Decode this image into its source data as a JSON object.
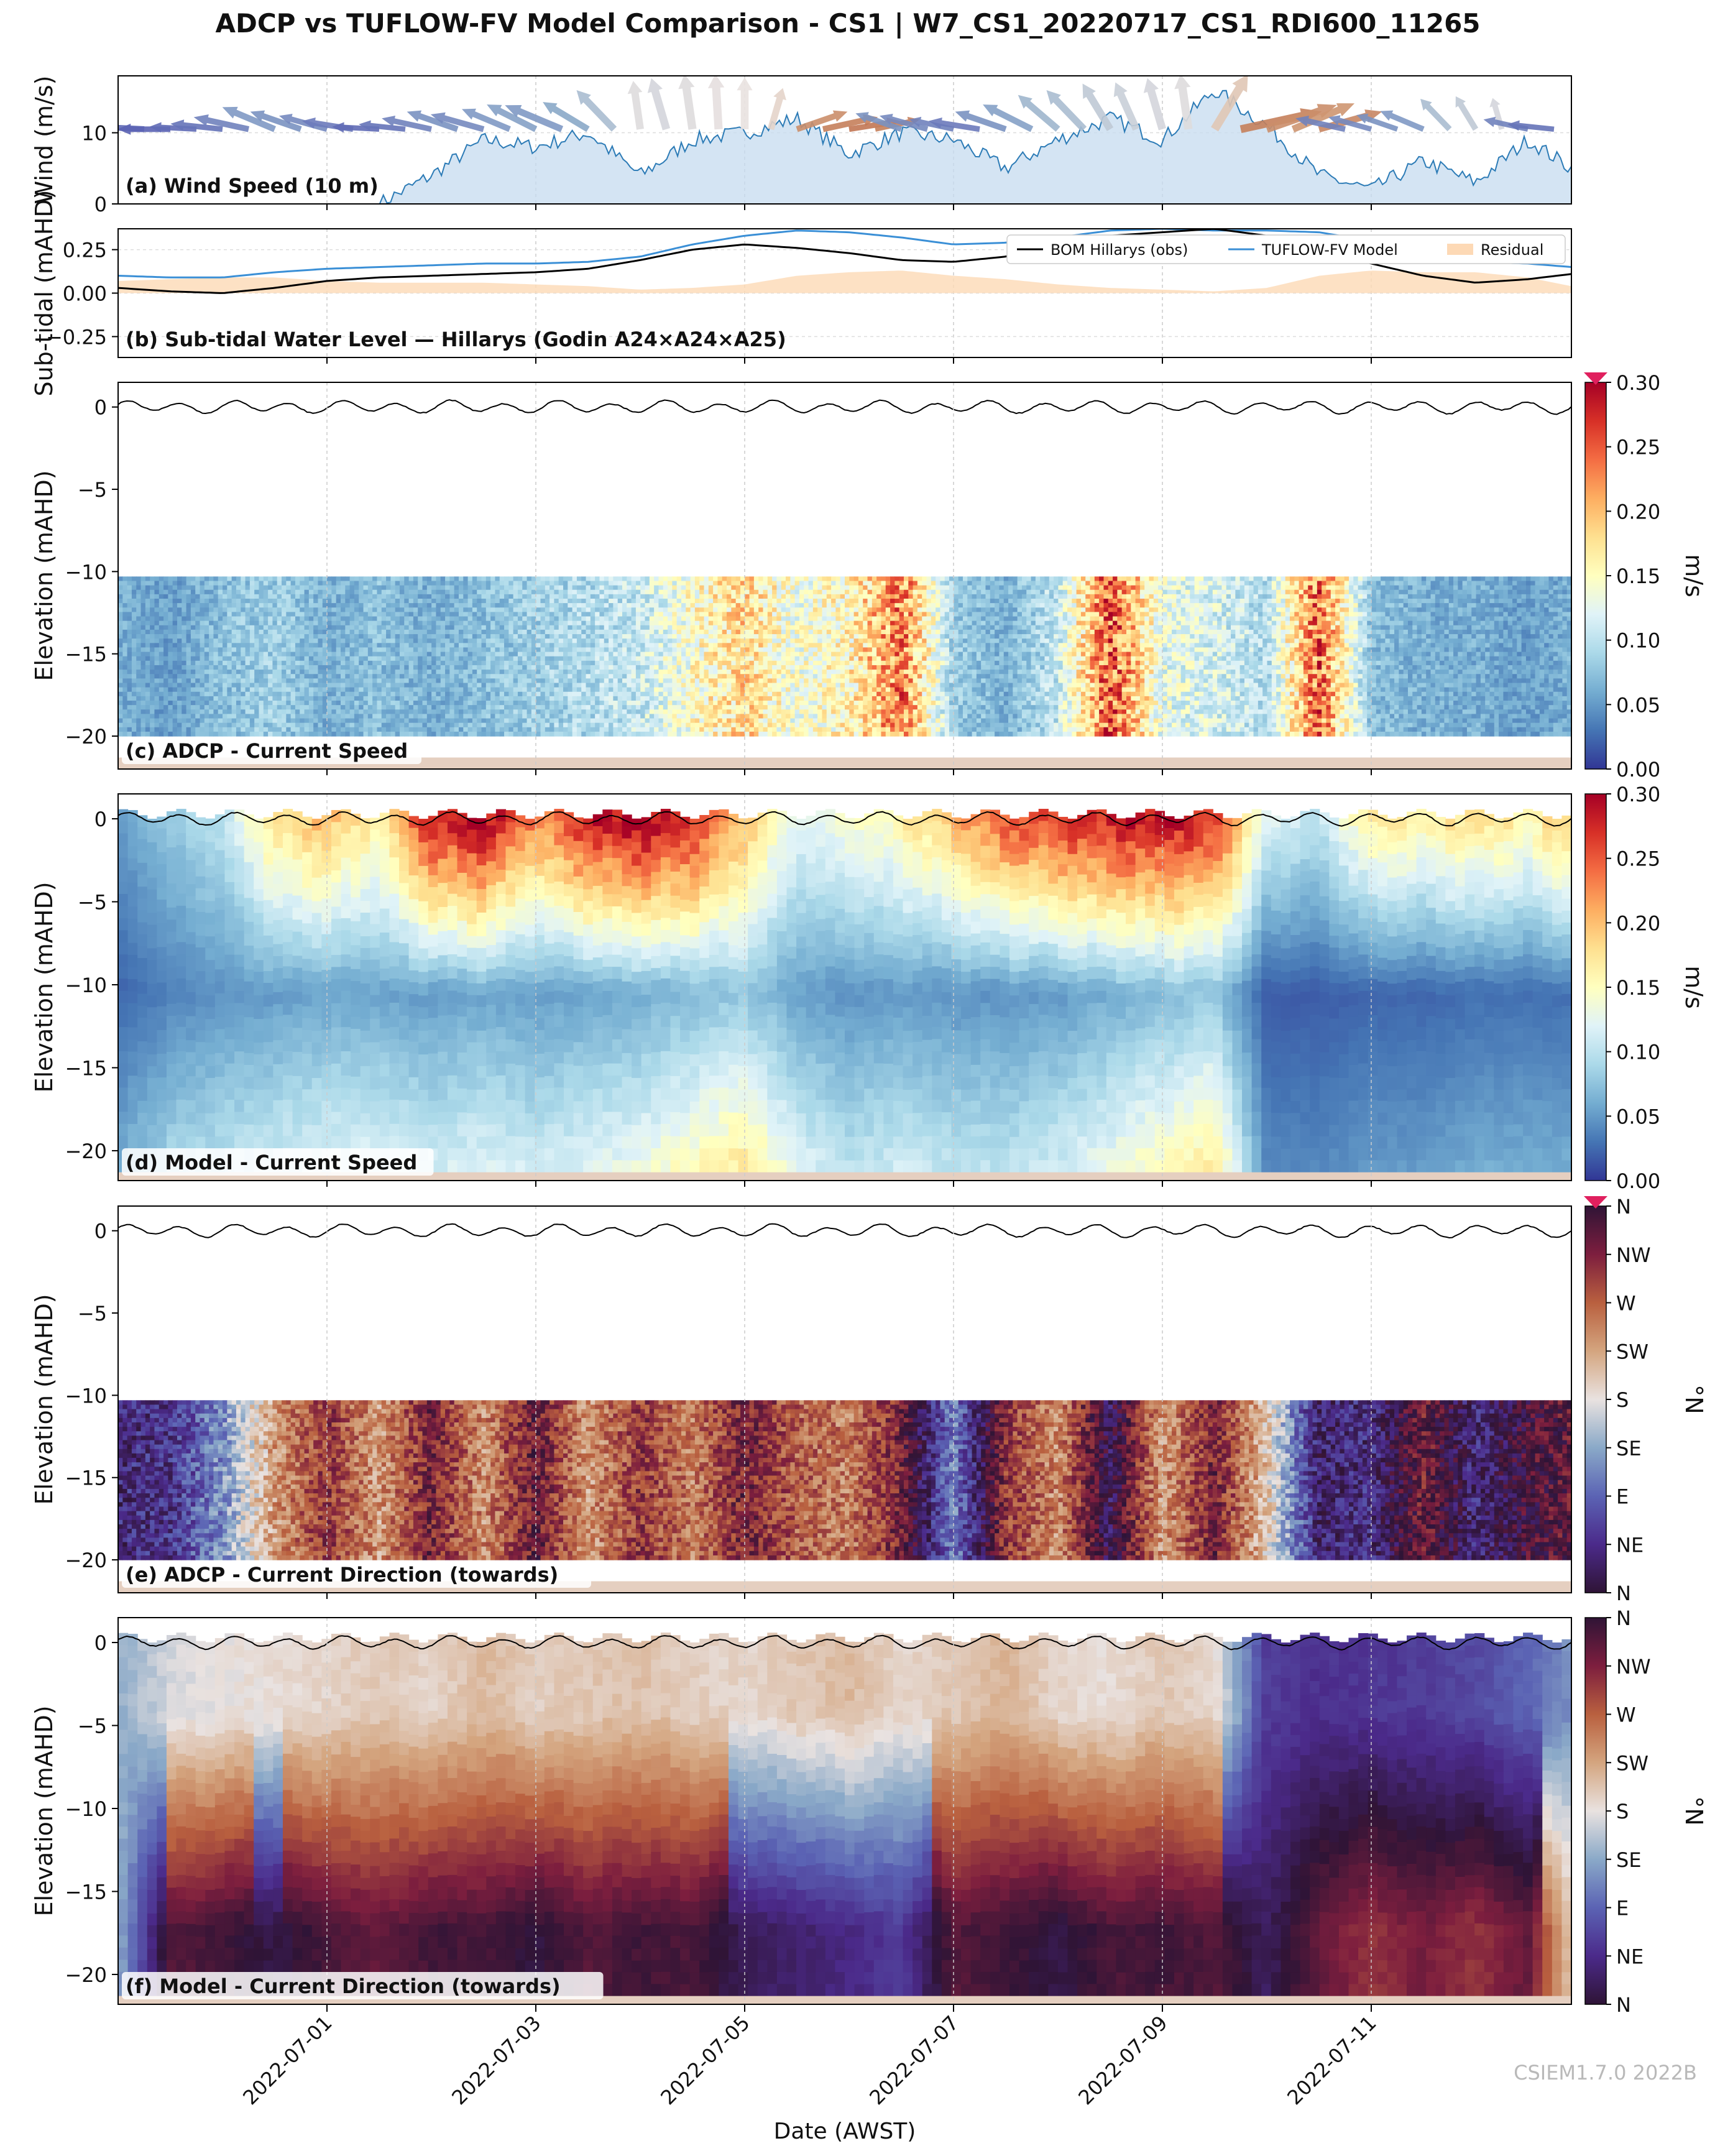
{
  "title": "ADCP vs TUFLOW-FV Model Comparison - CS1 | W7_CS1_20220717_CS1_RDI600_11265",
  "watermark": "CSIEM1.7.0 2022B",
  "x_axis": {
    "label": "Date (AWST)",
    "range": [
      "2022-06-29",
      "2022-07-12T22:00"
    ],
    "ticks": [
      "2022-07-01",
      "2022-07-03",
      "2022-07-05",
      "2022-07-07",
      "2022-07-09",
      "2022-07-11"
    ]
  },
  "colors": {
    "speed_cmap": [
      "#313695",
      "#4575b4",
      "#74add1",
      "#abd9e9",
      "#e0f3f8",
      "#ffffbf",
      "#fee090",
      "#fdae61",
      "#f46d43",
      "#d73027",
      "#a50026"
    ],
    "direction_cmap": [
      "#2f1436",
      "#4b2a8a",
      "#5b63b4",
      "#8aa9c8",
      "#e9e2e0",
      "#d4a57f",
      "#b9603f",
      "#7d1e3e",
      "#2f1436"
    ],
    "wind_fill": "#c6dbef",
    "wind_line": "#2c7bb6",
    "obs_line": "#000000",
    "model_line": "#3a8fd6",
    "residual_fill": "#fdd9b5",
    "seabed": "#e5cfc0",
    "surface_line": "#000000",
    "extend_marker": "#e0205e"
  },
  "chart_data": [
    {
      "id": "a",
      "type": "area",
      "panel_label": "(a) Wind Speed (10 m)",
      "ylabel": "Wind (m/s)",
      "ylim": [
        0,
        18
      ],
      "yticks": [
        0,
        10
      ],
      "grid": true,
      "series": [
        {
          "x": [
            "2022-06-29T00:00",
            "2022-06-29T12:00",
            "2022-06-30T00:00",
            "2022-06-30T12:00",
            "2022-07-01T00:00",
            "2022-07-01T12:00",
            "2022-07-02T00:00",
            "2022-07-02T12:00",
            "2022-07-03T00:00",
            "2022-07-03T12:00",
            "2022-07-04T00:00",
            "2022-07-04T12:00",
            "2022-07-05T00:00",
            "2022-07-05T12:00",
            "2022-07-06T00:00",
            "2022-07-06T12:00",
            "2022-07-07T00:00",
            "2022-07-07T12:00",
            "2022-07-08T00:00",
            "2022-07-08T12:00",
            "2022-07-09T00:00",
            "2022-07-09T12:00",
            "2022-07-10T00:00",
            "2022-07-10T12:00",
            "2022-07-11T00:00",
            "2022-07-11T12:00",
            "2022-07-12T00:00",
            "2022-07-12T12:00",
            "2022-07-12T22:00"
          ],
          "values": [
            0,
            0,
            0,
            0,
            0,
            0,
            4,
            9,
            8,
            10,
            4,
            9,
            10,
            12,
            7,
            10,
            9,
            5,
            9,
            12,
            9,
            16,
            11,
            4,
            2,
            6,
            3,
            9,
            5
          ]
        }
      ],
      "arrows": {
        "x": [
          "2022-06-29T00:00",
          "2022-06-29T06:00",
          "2022-06-29T12:00",
          "2022-06-29T18:00",
          "2022-06-30T00:00",
          "2022-06-30T06:00",
          "2022-06-30T12:00",
          "2022-06-30T18:00",
          "2022-07-01T00:00",
          "2022-07-01T06:00",
          "2022-07-01T12:00",
          "2022-07-01T18:00",
          "2022-07-02T00:00",
          "2022-07-02T06:00",
          "2022-07-02T12:00",
          "2022-07-02T18:00",
          "2022-07-03T00:00",
          "2022-07-03T06:00",
          "2022-07-03T12:00",
          "2022-07-03T18:00",
          "2022-07-04T00:00",
          "2022-07-04T06:00",
          "2022-07-04T12:00",
          "2022-07-04T18:00",
          "2022-07-05T00:00",
          "2022-07-05T06:00",
          "2022-07-05T12:00",
          "2022-07-05T18:00",
          "2022-07-06T00:00",
          "2022-07-06T06:00",
          "2022-07-06T12:00",
          "2022-07-06T18:00",
          "2022-07-07T00:00",
          "2022-07-07T06:00",
          "2022-07-07T12:00",
          "2022-07-07T18:00",
          "2022-07-08T00:00",
          "2022-07-08T06:00",
          "2022-07-08T12:00",
          "2022-07-08T18:00",
          "2022-07-09T00:00",
          "2022-07-09T06:00",
          "2022-07-09T12:00",
          "2022-07-09T18:00",
          "2022-07-10T00:00",
          "2022-07-10T06:00",
          "2022-07-10T12:00",
          "2022-07-10T18:00",
          "2022-07-11T00:00",
          "2022-07-11T06:00",
          "2022-07-11T12:00",
          "2022-07-11T18:00",
          "2022-07-12T00:00",
          "2022-07-12T06:00",
          "2022-07-12T12:00",
          "2022-07-12T18:00"
        ],
        "direction_deg": [
          100,
          95,
          90,
          95,
          100,
          110,
          125,
          120,
          115,
          105,
          95,
          100,
          110,
          120,
          115,
          125,
          130,
          125,
          135,
          150,
          175,
          170,
          175,
          178,
          180,
          190,
          240,
          250,
          255,
          250,
          120,
          115,
          110,
          105,
          120,
          130,
          145,
          150,
          160,
          165,
          170,
          175,
          200,
          250,
          240,
          235,
          245,
          110,
          115,
          120,
          125,
          150,
          160,
          170,
          110,
          100
        ],
        "speed": [
          5,
          6,
          5,
          4,
          5,
          6,
          7,
          6,
          5,
          5,
          4,
          4,
          5,
          6,
          6,
          6,
          7,
          8,
          7,
          9,
          10,
          11,
          12,
          12,
          11,
          8,
          6,
          6,
          5,
          4,
          5,
          5,
          4,
          5,
          6,
          7,
          8,
          9,
          10,
          10,
          11,
          12,
          13,
          11,
          10,
          9,
          8,
          5,
          4,
          4,
          5,
          6,
          6,
          5,
          4,
          4
        ]
      }
    },
    {
      "id": "b",
      "type": "line",
      "panel_label": "(b) Sub-tidal Water Level — Hillarys (Godin A24×A24×A25)",
      "ylabel": "Sub-tidal (mAHD)",
      "ylim": [
        -0.37,
        0.37
      ],
      "yticks": [
        -0.25,
        0.0,
        0.25
      ],
      "ytick_labels": [
        "−0.25",
        "0.00",
        "0.25"
      ],
      "grid": true,
      "legend": "top-right",
      "x": [
        "2022-06-29T00:00",
        "2022-06-29T12:00",
        "2022-06-30T00:00",
        "2022-06-30T12:00",
        "2022-07-01T00:00",
        "2022-07-01T12:00",
        "2022-07-02T00:00",
        "2022-07-02T12:00",
        "2022-07-03T00:00",
        "2022-07-03T12:00",
        "2022-07-04T00:00",
        "2022-07-04T12:00",
        "2022-07-05T00:00",
        "2022-07-05T12:00",
        "2022-07-06T00:00",
        "2022-07-06T12:00",
        "2022-07-07T00:00",
        "2022-07-07T12:00",
        "2022-07-08T00:00",
        "2022-07-08T12:00",
        "2022-07-09T00:00",
        "2022-07-09T12:00",
        "2022-07-10T00:00",
        "2022-07-10T12:00",
        "2022-07-11T00:00",
        "2022-07-11T12:00",
        "2022-07-12T00:00",
        "2022-07-12T12:00",
        "2022-07-12T22:00"
      ],
      "series": [
        {
          "name": "BOM Hillarys (obs)",
          "values": [
            0.03,
            0.01,
            0.0,
            0.03,
            0.07,
            0.09,
            0.1,
            0.11,
            0.12,
            0.14,
            0.19,
            0.25,
            0.28,
            0.26,
            0.23,
            0.19,
            0.18,
            0.21,
            0.27,
            0.33,
            0.35,
            0.37,
            0.33,
            0.25,
            0.17,
            0.1,
            0.06,
            0.08,
            0.11
          ]
        },
        {
          "name": "TUFLOW-FV Model",
          "values": [
            0.1,
            0.09,
            0.09,
            0.12,
            0.14,
            0.15,
            0.16,
            0.17,
            0.17,
            0.18,
            0.21,
            0.28,
            0.33,
            0.36,
            0.35,
            0.32,
            0.28,
            0.29,
            0.32,
            0.36,
            0.37,
            0.36,
            0.36,
            0.35,
            0.3,
            0.22,
            0.18,
            0.17,
            0.15
          ]
        },
        {
          "name": "Residual",
          "values": [
            0.07,
            0.08,
            0.09,
            0.09,
            0.07,
            0.06,
            0.06,
            0.06,
            0.05,
            0.04,
            0.02,
            0.03,
            0.05,
            0.1,
            0.12,
            0.13,
            0.1,
            0.08,
            0.05,
            0.03,
            0.02,
            0.01,
            0.03,
            0.1,
            0.13,
            0.12,
            0.12,
            0.09,
            0.04
          ]
        }
      ]
    },
    {
      "id": "c",
      "type": "heatmap",
      "panel_label": "(c) ADCP - Current Speed",
      "ylabel": "Elevation (mAHD)",
      "ylim": [
        -22,
        1.5
      ],
      "yticks": [
        0,
        -5,
        -10,
        -15,
        -20
      ],
      "ytick_labels": [
        "0",
        "−5",
        "−10",
        "−15",
        "−20"
      ],
      "colorbar": {
        "label": "m/s",
        "range": [
          0,
          0.3
        ],
        "ticks": [
          "0.00",
          "0.05",
          "0.10",
          "0.15",
          "0.20",
          "0.25",
          "0.30"
        ],
        "extend": "max"
      },
      "data_depth_range": [
        -20,
        -10.3
      ],
      "seabed_elevation": -21.3,
      "surface_amplitude": 0.3,
      "profile": {
        "x": [
          "2022-06-29T00:00",
          "2022-06-29T12:00",
          "2022-06-30T00:00",
          "2022-06-30T12:00",
          "2022-07-01T00:00",
          "2022-07-01T12:00",
          "2022-07-02T00:00",
          "2022-07-02T12:00",
          "2022-07-03T00:00",
          "2022-07-03T12:00",
          "2022-07-04T00:00",
          "2022-07-04T12:00",
          "2022-07-05T00:00",
          "2022-07-05T12:00",
          "2022-07-06T00:00",
          "2022-07-06T12:00",
          "2022-07-07T00:00",
          "2022-07-07T12:00",
          "2022-07-08T00:00",
          "2022-07-08T12:00",
          "2022-07-09T00:00",
          "2022-07-09T12:00",
          "2022-07-10T00:00",
          "2022-07-10T12:00",
          "2022-07-11T00:00",
          "2022-07-11T12:00",
          "2022-07-12T00:00",
          "2022-07-12T12:00",
          "2022-07-12T22:00"
        ],
        "speed": [
          0.06,
          0.05,
          0.07,
          0.08,
          0.06,
          0.07,
          0.06,
          0.07,
          0.08,
          0.09,
          0.1,
          0.14,
          0.17,
          0.13,
          0.15,
          0.22,
          0.08,
          0.06,
          0.1,
          0.24,
          0.12,
          0.11,
          0.09,
          0.23,
          0.07,
          0.06,
          0.06,
          0.05,
          0.06
        ]
      }
    },
    {
      "id": "d",
      "type": "heatmap",
      "panel_label": "(d) Model - Current Speed",
      "ylabel": "Elevation (mAHD)",
      "ylim": [
        -21.8,
        1.5
      ],
      "yticks": [
        0,
        -5,
        -10,
        -15,
        -20
      ],
      "ytick_labels": [
        "0",
        "−5",
        "−10",
        "−15",
        "−20"
      ],
      "colorbar": {
        "label": "m/s",
        "range": [
          0,
          0.3
        ],
        "ticks": [
          "0.00",
          "0.05",
          "0.10",
          "0.15",
          "0.20",
          "0.25",
          "0.30"
        ],
        "extend": "none"
      },
      "data_depth_range": [
        -21.3,
        0.3
      ],
      "seabed_elevation": -21.3,
      "surface_amplitude": 0.3,
      "profile": {
        "x": [
          "2022-06-29T00:00",
          "2022-06-29T12:00",
          "2022-06-30T00:00",
          "2022-06-30T12:00",
          "2022-07-01T00:00",
          "2022-07-01T12:00",
          "2022-07-02T00:00",
          "2022-07-02T12:00",
          "2022-07-03T00:00",
          "2022-07-03T12:00",
          "2022-07-04T00:00",
          "2022-07-04T12:00",
          "2022-07-05T00:00",
          "2022-07-05T12:00",
          "2022-07-06T00:00",
          "2022-07-06T12:00",
          "2022-07-07T00:00",
          "2022-07-07T12:00",
          "2022-07-08T00:00",
          "2022-07-08T12:00",
          "2022-07-09T00:00",
          "2022-07-09T12:00",
          "2022-07-10T00:00",
          "2022-07-10T12:00",
          "2022-07-11T00:00",
          "2022-07-11T12:00",
          "2022-07-12T00:00",
          "2022-07-12T12:00",
          "2022-07-12T22:00"
        ],
        "surface_speed": [
          0.05,
          0.08,
          0.1,
          0.18,
          0.2,
          0.16,
          0.28,
          0.3,
          0.22,
          0.28,
          0.3,
          0.27,
          0.2,
          0.12,
          0.14,
          0.16,
          0.2,
          0.25,
          0.27,
          0.28,
          0.29,
          0.27,
          0.12,
          0.1,
          0.17,
          0.16,
          0.18,
          0.16,
          0.2
        ],
        "bottom_speed": [
          0.06,
          0.09,
          0.1,
          0.11,
          0.12,
          0.12,
          0.11,
          0.12,
          0.11,
          0.12,
          0.13,
          0.15,
          0.17,
          0.12,
          0.1,
          0.11,
          0.1,
          0.1,
          0.11,
          0.13,
          0.15,
          0.17,
          0.04,
          0.04,
          0.05,
          0.05,
          0.06,
          0.06,
          0.06
        ]
      }
    },
    {
      "id": "e",
      "type": "heatmap",
      "panel_label": "(e) ADCP - Current Direction (towards)",
      "ylabel": "Elevation (mAHD)",
      "ylim": [
        -22,
        1.5
      ],
      "yticks": [
        0,
        -5,
        -10,
        -15,
        -20
      ],
      "ytick_labels": [
        "0",
        "−5",
        "−10",
        "−15",
        "−20"
      ],
      "colorbar": {
        "label": "°N",
        "range": [
          0,
          360
        ],
        "ticks": [
          "N",
          "NE",
          "E",
          "SE",
          "S",
          "SW",
          "W",
          "NW",
          "N"
        ],
        "extend": "max"
      },
      "data_depth_range": [
        -20,
        -10.3
      ],
      "seabed_elevation": -21.3,
      "surface_amplitude": 0.3,
      "profile": {
        "x": [
          "2022-06-29T00:00",
          "2022-06-29T12:00",
          "2022-06-30T00:00",
          "2022-06-30T12:00",
          "2022-07-01T00:00",
          "2022-07-01T12:00",
          "2022-07-02T00:00",
          "2022-07-02T12:00",
          "2022-07-03T00:00",
          "2022-07-03T12:00",
          "2022-07-04T00:00",
          "2022-07-04T12:00",
          "2022-07-05T00:00",
          "2022-07-05T12:00",
          "2022-07-06T00:00",
          "2022-07-06T12:00",
          "2022-07-07T00:00",
          "2022-07-07T12:00",
          "2022-07-08T00:00",
          "2022-07-08T12:00",
          "2022-07-09T00:00",
          "2022-07-09T12:00",
          "2022-07-10T00:00",
          "2022-07-10T12:00",
          "2022-07-11T00:00",
          "2022-07-11T12:00",
          "2022-07-12T00:00",
          "2022-07-12T12:00",
          "2022-07-12T22:00"
        ],
        "direction_deg": [
          40,
          50,
          120,
          230,
          300,
          230,
          320,
          240,
          330,
          230,
          300,
          250,
          320,
          270,
          250,
          320,
          110,
          300,
          240,
          20,
          230,
          320,
          200,
          30,
          45,
          320,
          40,
          350,
          330
        ]
      }
    },
    {
      "id": "f",
      "type": "heatmap",
      "panel_label": "(f) Model - Current Direction (towards)",
      "ylabel": "Elevation (mAHD)",
      "ylim": [
        -21.8,
        1.5
      ],
      "yticks": [
        0,
        -5,
        -10,
        -15,
        -20
      ],
      "ytick_labels": [
        "0",
        "−5",
        "−10",
        "−15",
        "−20"
      ],
      "colorbar": {
        "label": "°N",
        "range": [
          0,
          360
        ],
        "ticks": [
          "N",
          "NE",
          "E",
          "SE",
          "S",
          "SW",
          "W",
          "NW",
          "N"
        ],
        "extend": "none"
      },
      "data_depth_range": [
        -21.3,
        0.3
      ],
      "seabed_elevation": -21.3,
      "surface_amplitude": 0.3,
      "profile": {
        "x": [
          "2022-06-29T00:00",
          "2022-06-29T12:00",
          "2022-06-30T00:00",
          "2022-06-30T12:00",
          "2022-07-01T00:00",
          "2022-07-01T12:00",
          "2022-07-02T00:00",
          "2022-07-02T12:00",
          "2022-07-03T00:00",
          "2022-07-03T12:00",
          "2022-07-04T00:00",
          "2022-07-04T12:00",
          "2022-07-05T00:00",
          "2022-07-05T12:00",
          "2022-07-06T00:00",
          "2022-07-06T12:00",
          "2022-07-07T00:00",
          "2022-07-07T12:00",
          "2022-07-08T00:00",
          "2022-07-08T12:00",
          "2022-07-09T00:00",
          "2022-07-09T12:00",
          "2022-07-10T00:00",
          "2022-07-10T12:00",
          "2022-07-11T00:00",
          "2022-07-11T12:00",
          "2022-07-12T00:00",
          "2022-07-12T12:00",
          "2022-07-12T22:00"
        ],
        "surface_direction_deg": [
          140,
          170,
          180,
          185,
          190,
          200,
          190,
          210,
          195,
          200,
          205,
          195,
          190,
          200,
          210,
          190,
          200,
          215,
          190,
          185,
          200,
          190,
          60,
          50,
          55,
          60,
          70,
          90,
          120
        ],
        "bottom_direction_deg": [
          140,
          340,
          350,
          10,
          345,
          330,
          350,
          345,
          5,
          340,
          350,
          345,
          20,
          30,
          40,
          60,
          340,
          350,
          10,
          345,
          350,
          340,
          20,
          330,
          300,
          320,
          300,
          330,
          200
        ]
      }
    }
  ]
}
